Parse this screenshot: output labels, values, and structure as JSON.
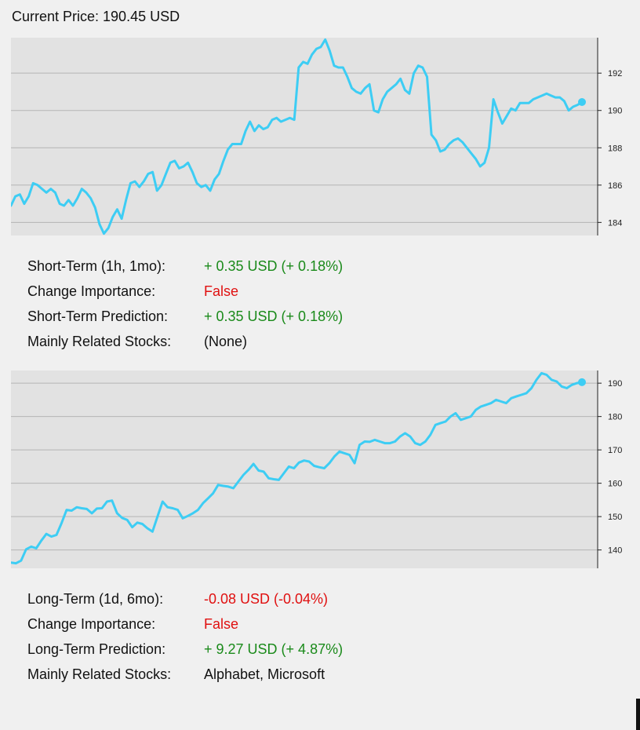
{
  "header": {
    "current_price": "Current Price: 190.45 USD"
  },
  "short_term": {
    "rows": [
      {
        "label": "Short-Term (1h, 1mo):",
        "value": "+ 0.35 USD (+ 0.18%)",
        "color": "green"
      },
      {
        "label": "Change Importance:",
        "value": "False",
        "color": "red"
      },
      {
        "label": "Short-Term Prediction:",
        "value": "+ 0.35 USD (+ 0.18%)",
        "color": "green"
      },
      {
        "label": "Mainly Related Stocks:",
        "value": "(None)",
        "color": "black"
      }
    ]
  },
  "long_term": {
    "rows": [
      {
        "label": "Long-Term (1d, 6mo):",
        "value": "-0.08 USD (-0.04%)",
        "color": "red"
      },
      {
        "label": "Change Importance:",
        "value": "False",
        "color": "red"
      },
      {
        "label": "Long-Term Prediction:",
        "value": "+ 9.27 USD (+ 4.87%)",
        "color": "green"
      },
      {
        "label": "Mainly Related Stocks:",
        "value": "Alphabet, Microsoft",
        "color": "black"
      }
    ]
  },
  "colors": {
    "line": "#3dcdf4",
    "plot_bg": "#e2e2e2",
    "grid": "#b4b4b4",
    "positive": "#1a8a1a",
    "negative": "#e01010"
  },
  "chart_data": [
    {
      "type": "line",
      "title": "",
      "xlabel": "",
      "ylabel": "",
      "ylim": [
        183.3,
        193.9
      ],
      "yticks": [
        184,
        186,
        188,
        190,
        192
      ],
      "grid": true,
      "y_axis_position": "right",
      "series": [
        {
          "name": "",
          "values": [
            184.9,
            185.4,
            185.5,
            185.0,
            185.4,
            186.1,
            186.0,
            185.8,
            185.6,
            185.8,
            185.6,
            185.0,
            184.9,
            185.2,
            184.9,
            185.3,
            185.8,
            185.6,
            185.3,
            184.8,
            183.9,
            183.4,
            183.7,
            184.3,
            184.7,
            184.2,
            185.2,
            186.1,
            186.2,
            185.9,
            186.2,
            186.6,
            186.7,
            185.7,
            186.0,
            186.6,
            187.2,
            187.3,
            186.9,
            187.0,
            187.2,
            186.7,
            186.1,
            185.9,
            186.0,
            185.7,
            186.3,
            186.6,
            187.3,
            187.9,
            188.2,
            188.2,
            188.2,
            188.9,
            189.4,
            188.9,
            189.2,
            189.0,
            189.1,
            189.5,
            189.6,
            189.4,
            189.5,
            189.6,
            189.5,
            192.3,
            192.6,
            192.5,
            193.0,
            193.3,
            193.4,
            193.8,
            193.2,
            192.4,
            192.3,
            192.3,
            191.8,
            191.2,
            191.0,
            190.9,
            191.2,
            191.4,
            190.0,
            189.9,
            190.6,
            191.0,
            191.2,
            191.4,
            191.7,
            191.1,
            190.9,
            192.0,
            192.4,
            192.3,
            191.8,
            188.7,
            188.4,
            187.8,
            187.9,
            188.2,
            188.4,
            188.5,
            188.3,
            188.0,
            187.7,
            187.4,
            187.0,
            187.2,
            188.0,
            190.6,
            189.9,
            189.3,
            189.7,
            190.1,
            190.0,
            190.4,
            190.4,
            190.4,
            190.6,
            190.7,
            190.8,
            190.9,
            190.8,
            190.7,
            190.7,
            190.5,
            190.0,
            190.2,
            190.3,
            190.45
          ]
        }
      ]
    },
    {
      "type": "line",
      "title": "",
      "xlabel": "",
      "ylabel": "",
      "ylim": [
        134.5,
        193.8
      ],
      "yticks": [
        140,
        150,
        160,
        170,
        180,
        190
      ],
      "grid": true,
      "y_axis_position": "right",
      "series": [
        {
          "name": "",
          "values": [
            136.2,
            136.0,
            136.8,
            140.2,
            141.0,
            140.5,
            142.8,
            144.8,
            144.0,
            144.5,
            148.0,
            152.0,
            151.8,
            152.8,
            152.5,
            152.3,
            151.0,
            152.4,
            152.5,
            154.5,
            154.8,
            151.0,
            149.6,
            149.0,
            146.8,
            148.2,
            147.8,
            146.5,
            145.5,
            150.0,
            154.5,
            152.8,
            152.5,
            152.0,
            149.5,
            150.2,
            151.0,
            152.0,
            154.0,
            155.5,
            157.0,
            159.5,
            159.2,
            159.0,
            158.5,
            160.5,
            162.5,
            164.0,
            165.8,
            163.8,
            163.5,
            161.5,
            161.2,
            161.0,
            163.0,
            165.0,
            164.5,
            166.2,
            166.8,
            166.5,
            165.2,
            164.8,
            164.5,
            166.0,
            168.0,
            169.5,
            169.0,
            168.5,
            166.0,
            171.5,
            172.5,
            172.4,
            173.0,
            172.5,
            172.0,
            172.0,
            172.5,
            174.0,
            175.0,
            174.0,
            172.0,
            171.5,
            172.5,
            174.5,
            177.5,
            178.0,
            178.5,
            180.0,
            181.0,
            179.0,
            179.5,
            180.0,
            182.0,
            183.0,
            183.5,
            184.0,
            185.0,
            184.5,
            184.0,
            185.5,
            186.0,
            186.5,
            187.0,
            188.5,
            191.0,
            193.0,
            192.5,
            191.0,
            190.5,
            189.0,
            188.5,
            189.5,
            190.0,
            190.3
          ]
        }
      ]
    }
  ]
}
